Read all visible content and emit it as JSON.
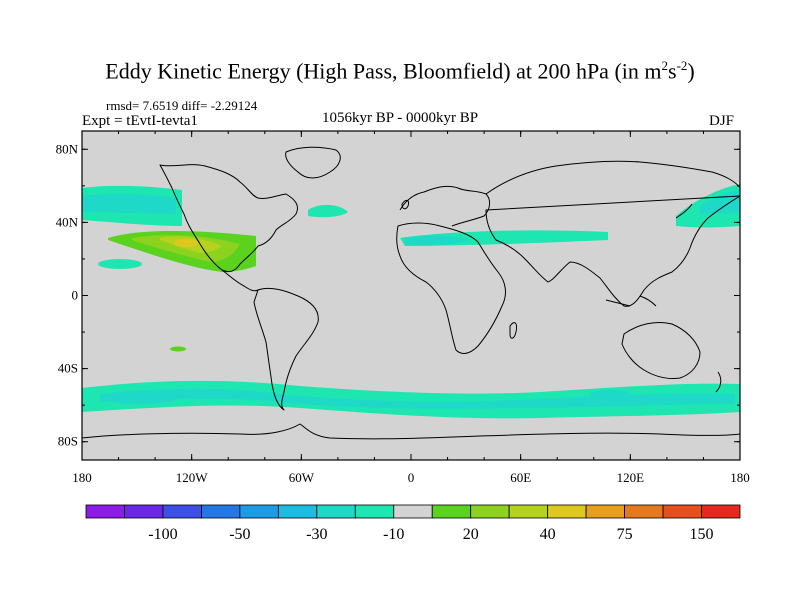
{
  "title": {
    "main": "Eddy Kinetic Energy (High Pass, Bloomfield) at 200 hPa (in m",
    "sup1": "2",
    "mid": "s",
    "sup2": "-2",
    "close": ")"
  },
  "stats": "rmsd= 7.6519 diff= -2.29124",
  "expt": "Expt = tEvtI-tevta1",
  "period": "1056kyr BP - 0000kyr BP",
  "season": "DJF",
  "map": {
    "lat_ticks": [
      "80N",
      "40N",
      "0",
      "40S",
      "80S"
    ],
    "lon_ticks": [
      "180",
      "120W",
      "60W",
      "0",
      "60E",
      "120E",
      "180"
    ],
    "background_color": "#d3d3d3"
  },
  "colorbar": {
    "colors": [
      "#8c1ce6",
      "#6a28e6",
      "#3c50e6",
      "#2478e6",
      "#1c9ce6",
      "#1cbce0",
      "#1ed8c8",
      "#1ee6b0",
      "#d3d3d3",
      "#5ad21e",
      "#8cd21e",
      "#b4d21e",
      "#dcc81e",
      "#e6a01e",
      "#e6781e",
      "#e6501e",
      "#e6281e"
    ],
    "labels": [
      "-100",
      "-50",
      "-30",
      "-10",
      "20",
      "40",
      "75",
      "150"
    ]
  }
}
